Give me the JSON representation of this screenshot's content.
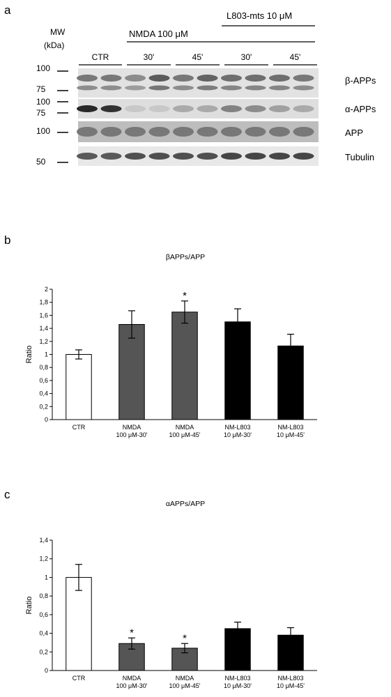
{
  "panels": {
    "a": "a",
    "b": "b",
    "c": "c"
  },
  "western_blot": {
    "mw_label": [
      "MW",
      "(kDa)"
    ],
    "treatment_label": "L803-mts 10 μM",
    "nmda_label": "NMDA 100 μM",
    "lane_groups": [
      "CTR",
      "30'",
      "45'",
      "30'",
      "45'"
    ],
    "bands": [
      {
        "label": "β-APPs",
        "markers": [
          "100",
          "75"
        ]
      },
      {
        "label": "α-APPs",
        "markers": [
          "100",
          "75"
        ]
      },
      {
        "label": "APP",
        "markers": [
          "100"
        ]
      },
      {
        "label": "Tubulin",
        "markers": [
          "50"
        ]
      }
    ]
  },
  "chart_data": [
    {
      "type": "bar",
      "title": "βAPPs/APP",
      "ylabel": "Ratio",
      "xlabel": "",
      "ylim": [
        0,
        2
      ],
      "ytick_step": 0.2,
      "yticks": [
        "0",
        "0,2",
        "0,4",
        "0,6",
        "0,8",
        "1",
        "1,2",
        "1,4",
        "1,6",
        "1,8",
        "2"
      ],
      "categories": [
        [
          "CTR"
        ],
        [
          "NMDA",
          "100 μM-30'"
        ],
        [
          "NMDA",
          "100 μM-45'"
        ],
        [
          "NM-L803",
          "10 μM-30'"
        ],
        [
          "NM-L803",
          "10 μM-45'"
        ]
      ],
      "values": [
        1.0,
        1.46,
        1.65,
        1.5,
        1.13
      ],
      "errors": [
        0.07,
        0.21,
        0.17,
        0.2,
        0.18
      ],
      "significance": [
        "",
        "",
        "*",
        "",
        ""
      ],
      "bar_colors": [
        "#ffffff",
        "#555555",
        "#555555",
        "#000000",
        "#000000"
      ]
    },
    {
      "type": "bar",
      "title": "αAPPs/APP",
      "ylabel": "Ratio",
      "xlabel": "",
      "ylim": [
        0,
        1.4
      ],
      "ytick_step": 0.2,
      "yticks": [
        "0",
        "0,2",
        "0,4",
        "0,6",
        "0,8",
        "1",
        "1,2",
        "1,4"
      ],
      "categories": [
        [
          "CTR"
        ],
        [
          "NMDA",
          "100 μM-30'"
        ],
        [
          "NMDA",
          "100 μM-45'"
        ],
        [
          "NM-L803",
          "10 μM-30'"
        ],
        [
          "NM-L803",
          "10 μM-45'"
        ]
      ],
      "values": [
        1.0,
        0.29,
        0.24,
        0.45,
        0.38
      ],
      "errors": [
        0.14,
        0.06,
        0.05,
        0.07,
        0.08
      ],
      "significance": [
        "",
        "*",
        "*",
        "",
        ""
      ],
      "bar_colors": [
        "#ffffff",
        "#555555",
        "#555555",
        "#000000",
        "#000000"
      ]
    }
  ]
}
